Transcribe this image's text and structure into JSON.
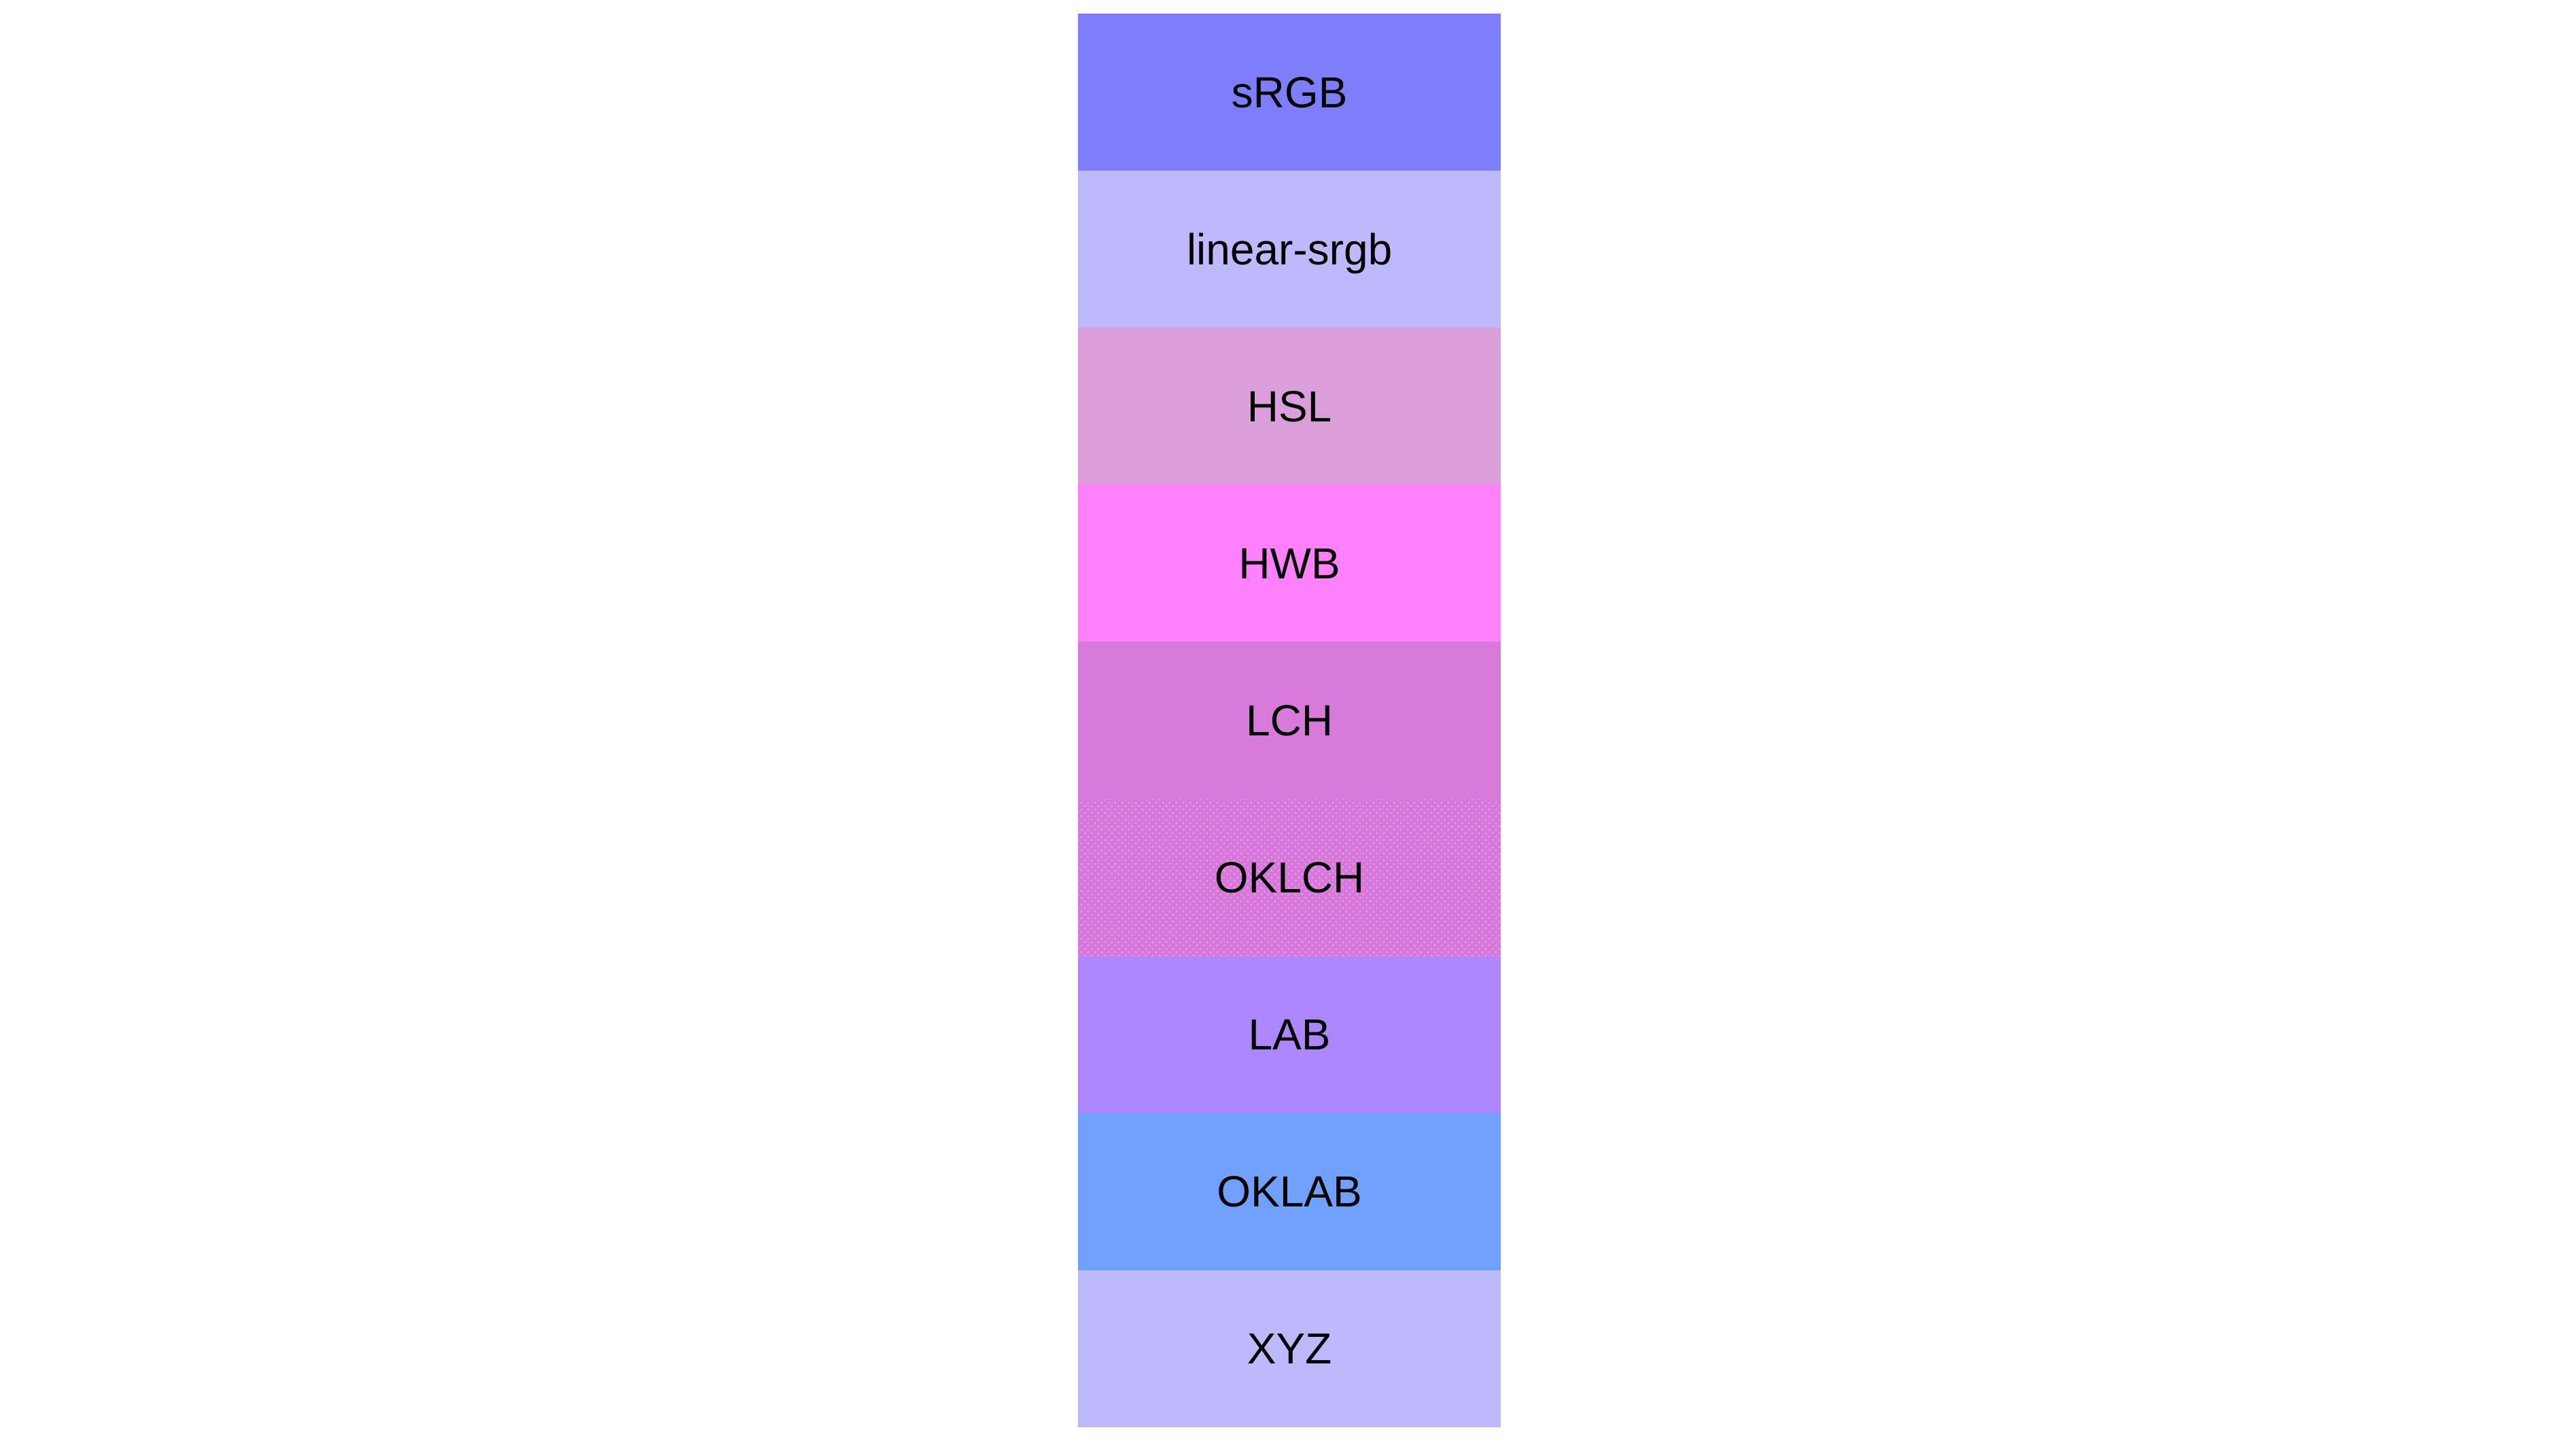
{
  "page": {
    "background_color": "#ffffff",
    "text_color": "#000000"
  },
  "swatches": [
    {
      "label": "sRGB",
      "color": "#7e7efc"
    },
    {
      "label": "linear-srgb",
      "color": "#bdb9fc"
    },
    {
      "label": "HSL",
      "color": "#da9edb"
    },
    {
      "label": "HWB",
      "color": "#fe81fb"
    },
    {
      "label": "LCH",
      "color": "#d87ada"
    },
    {
      "label": "OKLCH",
      "color": "#d578dc",
      "dithered": true,
      "dither_dot_color": "#f28be0"
    },
    {
      "label": "LAB",
      "color": "#ac86fc"
    },
    {
      "label": "OKLAB",
      "color": "#70a0fd"
    },
    {
      "label": "XYZ",
      "color": "#bdb9fc"
    }
  ]
}
